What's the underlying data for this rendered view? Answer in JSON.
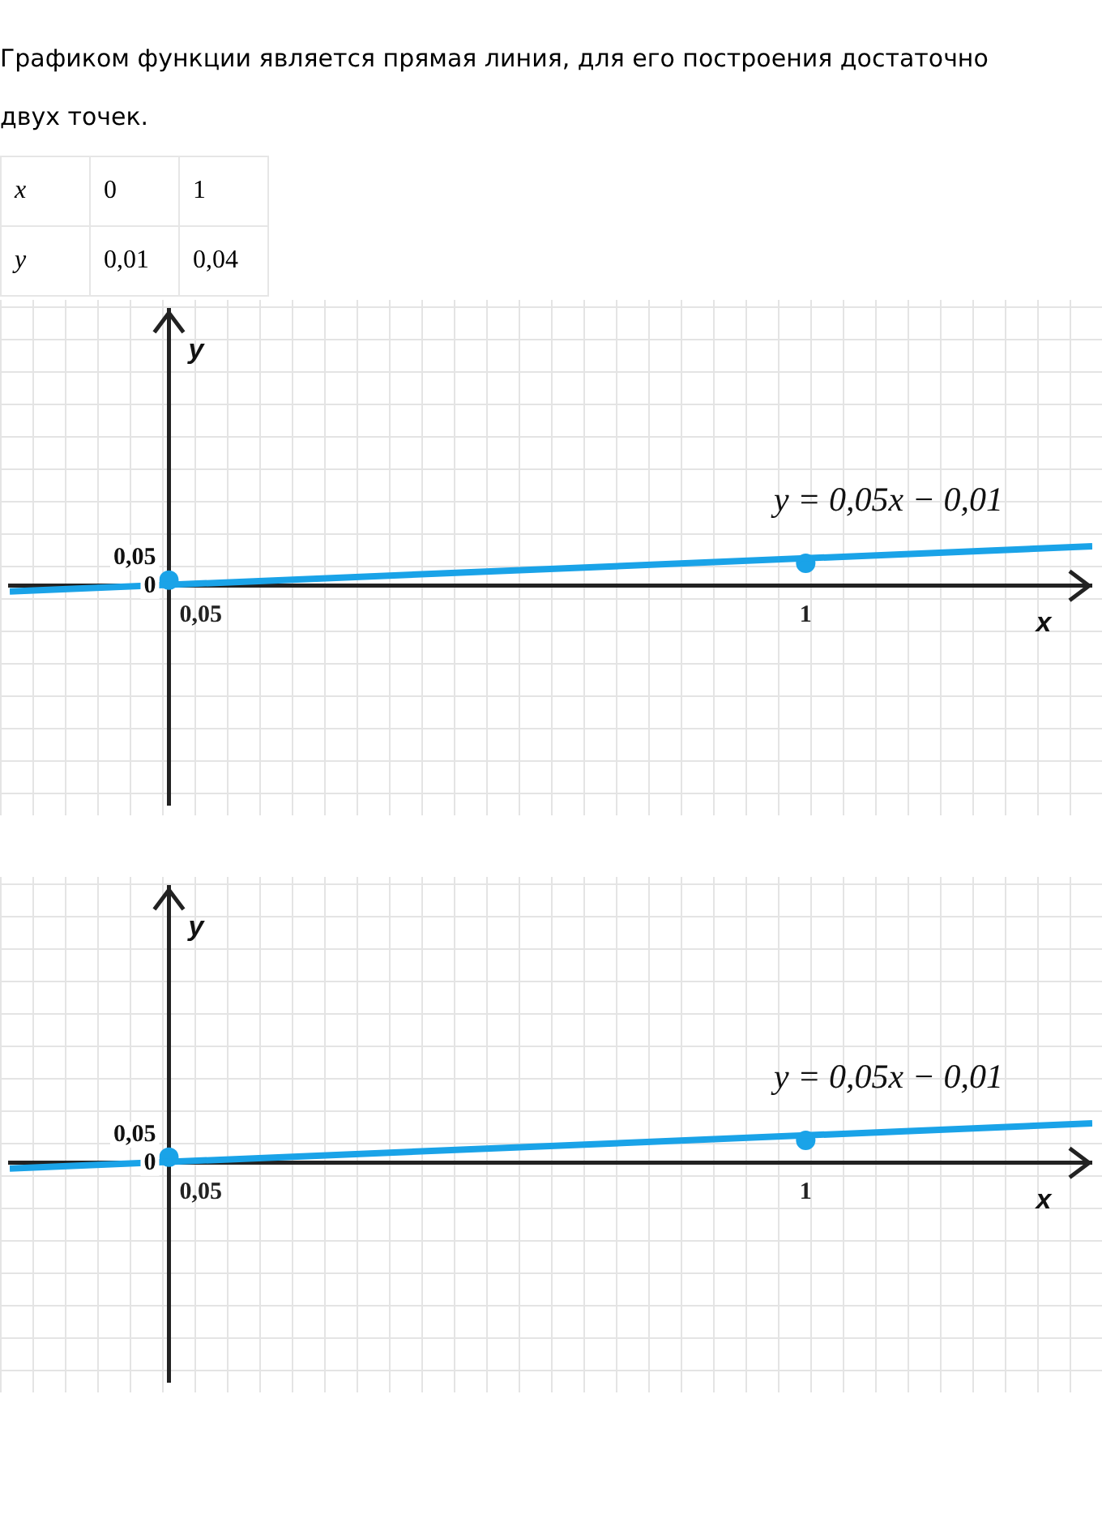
{
  "chart_data": [
    {
      "type": "other",
      "title": "Графиком функции является прямая линия, для его построения достаточно двух точек.",
      "annotations": [
        "x",
        "0",
        "1",
        "y",
        "0,01",
        "0,04"
      ]
    },
    {
      "type": "line",
      "xlabel": "x",
      "ylabel": "y",
      "xlim": [
        -0.25,
        1.45
      ],
      "ylim": [
        -0.39,
        0.49
      ],
      "xticks": [
        {
          "value": 0.05,
          "label": "0,05"
        },
        1
      ],
      "yticks": [
        0,
        {
          "value": 0.05,
          "label": "0,05"
        }
      ],
      "series": [
        {
          "name": "y = 0,05x − 0,01",
          "type": "line",
          "marker": "none",
          "color": "#1aa3e8",
          "x": [
            -0.25,
            1.45
          ],
          "values": [
            -0.01,
            0.07
          ]
        },
        {
          "type": "scatter",
          "marker": "circle",
          "color": "#1aa3e8",
          "x": [
            0,
            1
          ],
          "values": [
            0.01,
            0.04
          ]
        }
      ]
    },
    {
      "type": "line",
      "xlabel": "x",
      "ylabel": "y",
      "xlim": [
        -0.25,
        1.45
      ],
      "ylim": [
        -0.39,
        0.49
      ],
      "xticks": [
        {
          "value": 0.05,
          "label": "0,05"
        },
        1
      ],
      "yticks": [
        0,
        {
          "value": 0.05,
          "label": "0,05"
        }
      ],
      "series": [
        {
          "name": "y = 0,05x − 0,01",
          "type": "line",
          "marker": "none",
          "color": "#1aa3e8",
          "x": [
            -0.25,
            1.45
          ],
          "values": [
            -0.01,
            0.07
          ]
        },
        {
          "type": "scatter",
          "marker": "circle",
          "color": "#1aa3e8",
          "x": [
            0,
            1
          ],
          "values": [
            0.01,
            0.04
          ]
        }
      ]
    }
  ]
}
